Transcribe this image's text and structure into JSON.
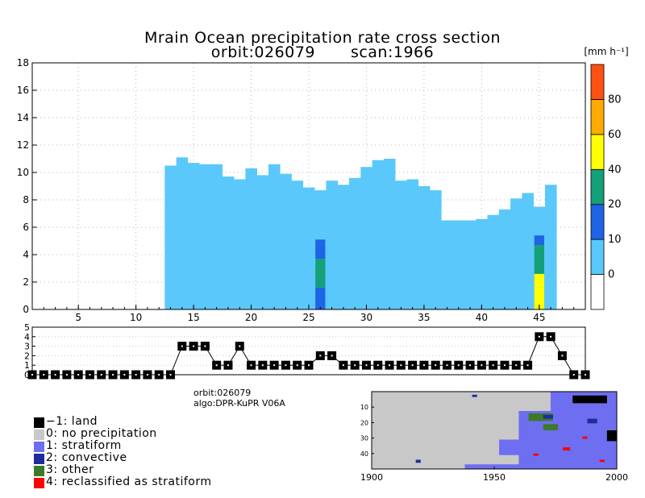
{
  "title_line1": "Mrain Ocean precipitation rate cross section",
  "title_line2_orbit": "orbit:026079",
  "title_line2_scan": "scan:1966",
  "colorbar": {
    "unit": "[mm h⁻¹]",
    "levels": [
      0,
      10,
      20,
      40,
      60,
      80
    ],
    "colors": [
      "#ffffff",
      "#5ac8fa",
      "#1e64e6",
      "#14a078",
      "#ffff00",
      "#ffaa00",
      "#ff5014"
    ]
  },
  "info": {
    "orbit": "orbit:026079",
    "algo": "algo:DPR-KuPR V06A"
  },
  "type_legend": [
    {
      "label": "−1: land",
      "color": "#000000"
    },
    {
      "label": "0: no precipitation",
      "color": "#c8c8c8"
    },
    {
      "label": "1: stratiform",
      "color": "#6e6ef0"
    },
    {
      "label": "2: convective",
      "color": "#1e2d9b"
    },
    {
      "label": "3: other",
      "color": "#3c7a28"
    },
    {
      "label": "4: reclassified as stratiform",
      "color": "#ff0000"
    }
  ],
  "map": {
    "x_ticks": [
      "1900",
      "1950",
      "2000"
    ],
    "y_ticks": [
      "10",
      "20",
      "30",
      "40"
    ],
    "background": "#c8c8c8"
  },
  "chart_data": [
    {
      "type": "heatmap",
      "title": "Mrain Ocean precipitation rate cross section",
      "xlim": [
        1,
        49
      ],
      "ylim": [
        0,
        18
      ],
      "x_ticks": [
        5,
        10,
        15,
        20,
        25,
        30,
        35,
        40,
        45
      ],
      "y_ticks": [
        0,
        2,
        4,
        6,
        8,
        10,
        12,
        14,
        16,
        18
      ],
      "grid": true,
      "rain_columns": [
        {
          "x": 13,
          "top": 10.5
        },
        {
          "x": 14,
          "top": 11.1
        },
        {
          "x": 15,
          "top": 10.7
        },
        {
          "x": 16,
          "top": 10.6
        },
        {
          "x": 17,
          "top": 10.6
        },
        {
          "x": 18,
          "top": 9.7
        },
        {
          "x": 19,
          "top": 9.5
        },
        {
          "x": 20,
          "top": 10.3
        },
        {
          "x": 21,
          "top": 9.8
        },
        {
          "x": 22,
          "top": 10.6
        },
        {
          "x": 23,
          "top": 9.9
        },
        {
          "x": 24,
          "top": 9.4
        },
        {
          "x": 25,
          "top": 8.9
        },
        {
          "x": 26,
          "top": 8.7
        },
        {
          "x": 27,
          "top": 9.4
        },
        {
          "x": 28,
          "top": 9.1
        },
        {
          "x": 29,
          "top": 9.6
        },
        {
          "x": 30,
          "top": 10.4
        },
        {
          "x": 31,
          "top": 10.9
        },
        {
          "x": 32,
          "top": 11.0
        },
        {
          "x": 33,
          "top": 9.4
        },
        {
          "x": 34,
          "top": 9.5
        },
        {
          "x": 35,
          "top": 9.0
        },
        {
          "x": 36,
          "top": 8.7
        },
        {
          "x": 37,
          "top": 6.5
        },
        {
          "x": 38,
          "top": 6.5
        },
        {
          "x": 39,
          "top": 6.5
        },
        {
          "x": 40,
          "top": 6.6
        },
        {
          "x": 41,
          "top": 6.9
        },
        {
          "x": 42,
          "top": 7.3
        },
        {
          "x": 43,
          "top": 8.1
        },
        {
          "x": 44,
          "top": 8.5
        },
        {
          "x": 45,
          "top": 7.5
        },
        {
          "x": 46,
          "top": 9.1
        }
      ],
      "intense_columns": [
        {
          "x": 26,
          "segments": [
            [
              0,
              1.6,
              10
            ],
            [
              1.6,
              3.7,
              20
            ],
            [
              3.7,
              4.8,
              10
            ],
            [
              4.8,
              5.1,
              10
            ]
          ]
        },
        {
          "x": 45,
          "segments": [
            [
              0,
              1.6,
              40
            ],
            [
              1.6,
              2.6,
              40
            ],
            [
              2.6,
              4.7,
              20
            ],
            [
              4.7,
              5.4,
              10
            ]
          ]
        }
      ]
    },
    {
      "type": "line",
      "title": "",
      "xlim": [
        1,
        49
      ],
      "ylim": [
        0,
        5
      ],
      "y_ticks": [
        0,
        1,
        2,
        3,
        4,
        5
      ],
      "x": [
        1,
        2,
        3,
        4,
        5,
        6,
        7,
        8,
        9,
        10,
        11,
        12,
        13,
        14,
        15,
        16,
        17,
        18,
        19,
        20,
        21,
        22,
        23,
        24,
        25,
        26,
        27,
        28,
        29,
        30,
        31,
        32,
        33,
        34,
        35,
        36,
        37,
        38,
        39,
        40,
        41,
        42,
        43,
        44,
        45,
        46,
        47,
        48,
        49
      ],
      "values": [
        0,
        0,
        0,
        0,
        0,
        0,
        0,
        0,
        0,
        0,
        0,
        0,
        0,
        3,
        3,
        3,
        1,
        1,
        3,
        1,
        1,
        1,
        1,
        1,
        1,
        2,
        2,
        1,
        1,
        1,
        1,
        1,
        1,
        1,
        1,
        1,
        1,
        1,
        1,
        1,
        1,
        1,
        1,
        1,
        4,
        4,
        2,
        0,
        0
      ]
    }
  ]
}
